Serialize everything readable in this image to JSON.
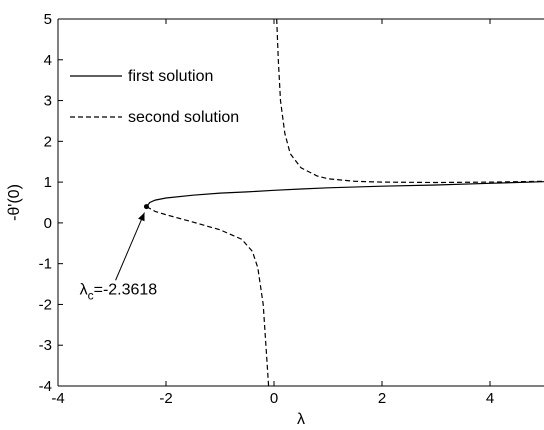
{
  "chart_data": {
    "type": "line",
    "title": "",
    "xlabel": "λ",
    "ylabel": "-θ'(0)",
    "xlim": [
      -4,
      5
    ],
    "ylim": [
      -4,
      5
    ],
    "x_ticks": [
      "-4",
      "-2",
      "0",
      "2",
      "4"
    ],
    "y_ticks": [
      "-4",
      "-3",
      "-2",
      "-1",
      "0",
      "1",
      "2",
      "3",
      "4",
      "5"
    ],
    "grid": false,
    "legend_position": "top-left",
    "series": [
      {
        "name": "first solution",
        "style": "solid",
        "color": "#000000",
        "x": [
          -2.3618,
          -2.3,
          -2.2,
          -2.0,
          -1.5,
          -1.0,
          -0.5,
          0.0,
          0.5,
          1.0,
          2.0,
          3.0,
          4.0,
          5.0
        ],
        "y": [
          0.4,
          0.5,
          0.56,
          0.61,
          0.68,
          0.73,
          0.76,
          0.8,
          0.83,
          0.86,
          0.9,
          0.93,
          0.97,
          1.01
        ]
      },
      {
        "name": "second solution",
        "style": "dashed",
        "color": "#000000",
        "x": [
          -2.3618,
          -2.2,
          -2.0,
          -1.5,
          -1.0,
          -0.6,
          -0.4,
          -0.3,
          -0.2,
          -0.15,
          -0.1,
          0.05,
          0.08,
          0.12,
          0.2,
          0.3,
          0.5,
          0.8,
          1.0,
          1.5,
          2.0,
          3.0,
          4.0,
          5.0
        ],
        "y": [
          0.4,
          0.28,
          0.2,
          0.02,
          -0.17,
          -0.4,
          -0.7,
          -1.1,
          -2.0,
          -3.0,
          -4.0,
          5.0,
          4.0,
          3.0,
          2.2,
          1.7,
          1.35,
          1.15,
          1.08,
          1.02,
          1.0,
          0.99,
          1.0,
          1.02
        ]
      }
    ],
    "annotation": {
      "symbol": "λ",
      "subscript": "c",
      "value_text": "=-2.3618",
      "point": {
        "x": -2.3618,
        "y": 0.4
      },
      "text_at": {
        "x": -3.6,
        "y": -1.75
      }
    }
  }
}
